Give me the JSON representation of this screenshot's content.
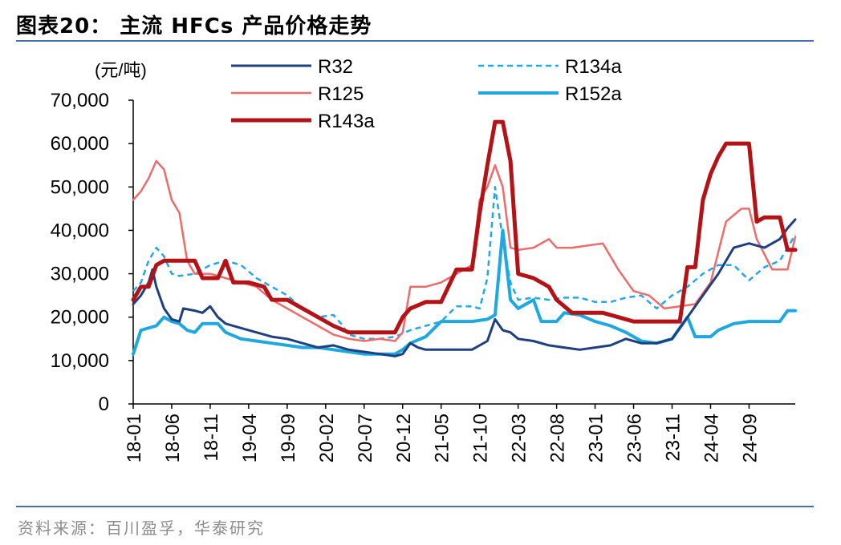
{
  "header": {
    "title": "图表20： 主流 HFCs 产品价格走势"
  },
  "footer": {
    "source": "资料来源：百川盈孚，华泰研究"
  },
  "chart_data": {
    "type": "line",
    "unit_label": "(元/吨)",
    "ylim": [
      0,
      70000
    ],
    "yticks": [
      0,
      10000,
      20000,
      30000,
      40000,
      50000,
      60000,
      70000
    ],
    "ytick_labels": [
      "0",
      "10,000",
      "20,000",
      "30,000",
      "40,000",
      "50,000",
      "60,000",
      "70,000"
    ],
    "xlim": [
      0,
      86
    ],
    "xticks": [
      0,
      5,
      10,
      15,
      20,
      25,
      30,
      35,
      40,
      45,
      50,
      55,
      60,
      65,
      70,
      75,
      80
    ],
    "xtick_labels": [
      "18-01",
      "18-06",
      "18-11",
      "19-04",
      "19-09",
      "20-02",
      "20-07",
      "20-12",
      "21-05",
      "21-10",
      "22-03",
      "22-08",
      "23-01",
      "23-06",
      "23-11",
      "24-04",
      "24-09"
    ],
    "x_unit": "months since 2018-01",
    "legend": [
      "R32",
      "R134a",
      "R125",
      "R152a",
      "R143a"
    ],
    "series": [
      {
        "name": "R32",
        "color": "#1f3f7f",
        "width": 3,
        "dash": "",
        "points": [
          [
            0,
            23000
          ],
          [
            1,
            25000
          ],
          [
            2,
            28000
          ],
          [
            2.5,
            31000
          ],
          [
            3,
            27000
          ],
          [
            4,
            22000
          ],
          [
            5,
            19500
          ],
          [
            6,
            19000
          ],
          [
            6.5,
            22000
          ],
          [
            8,
            21500
          ],
          [
            9,
            21000
          ],
          [
            10,
            22500
          ],
          [
            11,
            20000
          ],
          [
            12,
            18500
          ],
          [
            14,
            17500
          ],
          [
            16,
            16500
          ],
          [
            18,
            15500
          ],
          [
            20,
            15000
          ],
          [
            22,
            14000
          ],
          [
            24,
            13000
          ],
          [
            26,
            13500
          ],
          [
            28,
            12500
          ],
          [
            30,
            12000
          ],
          [
            32,
            11500
          ],
          [
            34,
            11000
          ],
          [
            35,
            11500
          ],
          [
            36,
            14000
          ],
          [
            37,
            13000
          ],
          [
            38,
            12500
          ],
          [
            40,
            12500
          ],
          [
            44,
            12500
          ],
          [
            46,
            14500
          ],
          [
            47,
            19500
          ],
          [
            48,
            17000
          ],
          [
            49,
            16500
          ],
          [
            50,
            15000
          ],
          [
            52,
            14500
          ],
          [
            54,
            13500
          ],
          [
            56,
            13000
          ],
          [
            58,
            12500
          ],
          [
            60,
            13000
          ],
          [
            62,
            13500
          ],
          [
            64,
            15000
          ],
          [
            65,
            14500
          ],
          [
            66,
            14000
          ],
          [
            68,
            14000
          ],
          [
            70,
            15000
          ],
          [
            72,
            20000
          ],
          [
            74,
            25000
          ],
          [
            76,
            30000
          ],
          [
            78,
            36000
          ],
          [
            80,
            37000
          ],
          [
            82,
            36000
          ],
          [
            84,
            38000
          ],
          [
            85,
            40500
          ],
          [
            86,
            42500
          ]
        ]
      },
      {
        "name": "R134a",
        "color": "#22a7e8",
        "width": 2.5,
        "dash": "7 5",
        "points": [
          [
            0,
            26000
          ],
          [
            1,
            28000
          ],
          [
            2,
            33000
          ],
          [
            3,
            36000
          ],
          [
            4,
            34000
          ],
          [
            5,
            30000
          ],
          [
            6,
            29500
          ],
          [
            8,
            30000
          ],
          [
            10,
            32000
          ],
          [
            12,
            33000
          ],
          [
            14,
            32000
          ],
          [
            16,
            29000
          ],
          [
            18,
            27000
          ],
          [
            20,
            25000
          ],
          [
            22,
            22000
          ],
          [
            24,
            20000
          ],
          [
            26,
            20500
          ],
          [
            27,
            18500
          ],
          [
            28,
            16000
          ],
          [
            30,
            15000
          ],
          [
            32,
            15000
          ],
          [
            34,
            15500
          ],
          [
            36,
            17000
          ],
          [
            38,
            18000
          ],
          [
            40,
            19000
          ],
          [
            42,
            22500
          ],
          [
            44,
            22500
          ],
          [
            45,
            22000
          ],
          [
            46,
            29000
          ],
          [
            47,
            50000
          ],
          [
            48,
            38000
          ],
          [
            49,
            28000
          ],
          [
            50,
            24000
          ],
          [
            52,
            24500
          ],
          [
            54,
            24000
          ],
          [
            56,
            24500
          ],
          [
            58,
            24500
          ],
          [
            60,
            23500
          ],
          [
            62,
            23500
          ],
          [
            64,
            24500
          ],
          [
            66,
            25000
          ],
          [
            67,
            23500
          ],
          [
            68,
            22000
          ],
          [
            70,
            25000
          ],
          [
            72,
            27000
          ],
          [
            74,
            30000
          ],
          [
            76,
            32000
          ],
          [
            78,
            32000
          ],
          [
            80,
            28500
          ],
          [
            82,
            31500
          ],
          [
            84,
            33000
          ],
          [
            86,
            39000
          ]
        ]
      },
      {
        "name": "R125",
        "color": "#ef6b6b",
        "width": 2.5,
        "dash": "",
        "points": [
          [
            0,
            47000
          ],
          [
            1,
            49000
          ],
          [
            2,
            52000
          ],
          [
            3,
            56000
          ],
          [
            4,
            54000
          ],
          [
            5,
            47000
          ],
          [
            6,
            44000
          ],
          [
            7,
            33000
          ],
          [
            8,
            30000
          ],
          [
            10,
            30000
          ],
          [
            12,
            29000
          ],
          [
            14,
            28000
          ],
          [
            16,
            27000
          ],
          [
            18,
            24000
          ],
          [
            20,
            22000
          ],
          [
            22,
            20000
          ],
          [
            24,
            18000
          ],
          [
            26,
            16000
          ],
          [
            28,
            15000
          ],
          [
            30,
            14500
          ],
          [
            32,
            15000
          ],
          [
            34,
            14500
          ],
          [
            35,
            16500
          ],
          [
            36,
            27000
          ],
          [
            38,
            27000
          ],
          [
            40,
            28000
          ],
          [
            42,
            30000
          ],
          [
            44,
            32000
          ],
          [
            45,
            47000
          ],
          [
            46,
            50000
          ],
          [
            47,
            55000
          ],
          [
            48,
            50000
          ],
          [
            49,
            36000
          ],
          [
            50,
            35500
          ],
          [
            52,
            36000
          ],
          [
            54,
            38000
          ],
          [
            55,
            36000
          ],
          [
            57,
            36000
          ],
          [
            59,
            36500
          ],
          [
            61,
            37000
          ],
          [
            63,
            31000
          ],
          [
            65,
            26000
          ],
          [
            67,
            25000
          ],
          [
            69,
            22000
          ],
          [
            71,
            22500
          ],
          [
            73,
            23000
          ],
          [
            75,
            28000
          ],
          [
            77,
            42000
          ],
          [
            79,
            45000
          ],
          [
            80,
            45000
          ],
          [
            81,
            38000
          ],
          [
            83,
            31000
          ],
          [
            85,
            31000
          ],
          [
            86,
            38500
          ]
        ]
      },
      {
        "name": "R152a",
        "color": "#1fa8e0",
        "width": 4,
        "dash": "",
        "points": [
          [
            0,
            11500
          ],
          [
            1,
            17000
          ],
          [
            3,
            18000
          ],
          [
            4,
            20000
          ],
          [
            5,
            19000
          ],
          [
            6,
            18500
          ],
          [
            7,
            17000
          ],
          [
            8,
            16500
          ],
          [
            9,
            18500
          ],
          [
            11,
            18500
          ],
          [
            12,
            16500
          ],
          [
            14,
            15000
          ],
          [
            16,
            14500
          ],
          [
            18,
            14000
          ],
          [
            20,
            13500
          ],
          [
            22,
            13000
          ],
          [
            24,
            13000
          ],
          [
            26,
            12500
          ],
          [
            28,
            12000
          ],
          [
            30,
            11500
          ],
          [
            32,
            11500
          ],
          [
            34,
            11500
          ],
          [
            35,
            12500
          ],
          [
            36,
            14000
          ],
          [
            38,
            15500
          ],
          [
            40,
            19000
          ],
          [
            44,
            19000
          ],
          [
            46,
            19500
          ],
          [
            47,
            20500
          ],
          [
            48,
            40000
          ],
          [
            49,
            24000
          ],
          [
            50,
            22000
          ],
          [
            52,
            24000
          ],
          [
            53,
            19000
          ],
          [
            55,
            19000
          ],
          [
            56,
            21000
          ],
          [
            58,
            20500
          ],
          [
            60,
            19000
          ],
          [
            62,
            18000
          ],
          [
            64,
            16500
          ],
          [
            65,
            15500
          ],
          [
            66,
            14500
          ],
          [
            68,
            14000
          ],
          [
            70,
            15000
          ],
          [
            72,
            20000
          ],
          [
            73,
            15500
          ],
          [
            75,
            15500
          ],
          [
            76,
            17000
          ],
          [
            78,
            18500
          ],
          [
            80,
            19000
          ],
          [
            82,
            19000
          ],
          [
            84,
            19000
          ],
          [
            85,
            21500
          ],
          [
            86,
            21500
          ]
        ]
      },
      {
        "name": "R143a",
        "color": "#b31217",
        "width": 5,
        "dash": "",
        "points": [
          [
            0,
            24000
          ],
          [
            1,
            27000
          ],
          [
            2,
            27000
          ],
          [
            3,
            32000
          ],
          [
            4,
            33000
          ],
          [
            5,
            33000
          ],
          [
            6,
            33000
          ],
          [
            7,
            33000
          ],
          [
            8,
            33000
          ],
          [
            9,
            29000
          ],
          [
            11,
            29000
          ],
          [
            12,
            33000
          ],
          [
            13,
            28000
          ],
          [
            15,
            28000
          ],
          [
            17,
            27000
          ],
          [
            18,
            24000
          ],
          [
            20,
            24000
          ],
          [
            22,
            22000
          ],
          [
            24,
            20000
          ],
          [
            26,
            18000
          ],
          [
            28,
            16500
          ],
          [
            30,
            16500
          ],
          [
            32,
            16500
          ],
          [
            34,
            16500
          ],
          [
            35,
            20000
          ],
          [
            36,
            22000
          ],
          [
            38,
            23500
          ],
          [
            40,
            23500
          ],
          [
            42,
            31000
          ],
          [
            44,
            31000
          ],
          [
            45,
            44000
          ],
          [
            46,
            55000
          ],
          [
            47,
            65000
          ],
          [
            48,
            65000
          ],
          [
            49,
            56000
          ],
          [
            50,
            30000
          ],
          [
            52,
            29000
          ],
          [
            54,
            27000
          ],
          [
            55,
            24000
          ],
          [
            57,
            21000
          ],
          [
            59,
            21000
          ],
          [
            61,
            21000
          ],
          [
            63,
            20000
          ],
          [
            65,
            19000
          ],
          [
            67,
            19000
          ],
          [
            69,
            19000
          ],
          [
            71,
            19000
          ],
          [
            72,
            31500
          ],
          [
            73,
            31500
          ],
          [
            74,
            47000
          ],
          [
            75,
            53000
          ],
          [
            76,
            57000
          ],
          [
            77,
            60000
          ],
          [
            78,
            60000
          ],
          [
            79,
            60000
          ],
          [
            80,
            60000
          ],
          [
            81,
            42000
          ],
          [
            82,
            43000
          ],
          [
            83,
            43000
          ],
          [
            84,
            43000
          ],
          [
            85,
            35500
          ],
          [
            86,
            35500
          ]
        ]
      }
    ]
  }
}
